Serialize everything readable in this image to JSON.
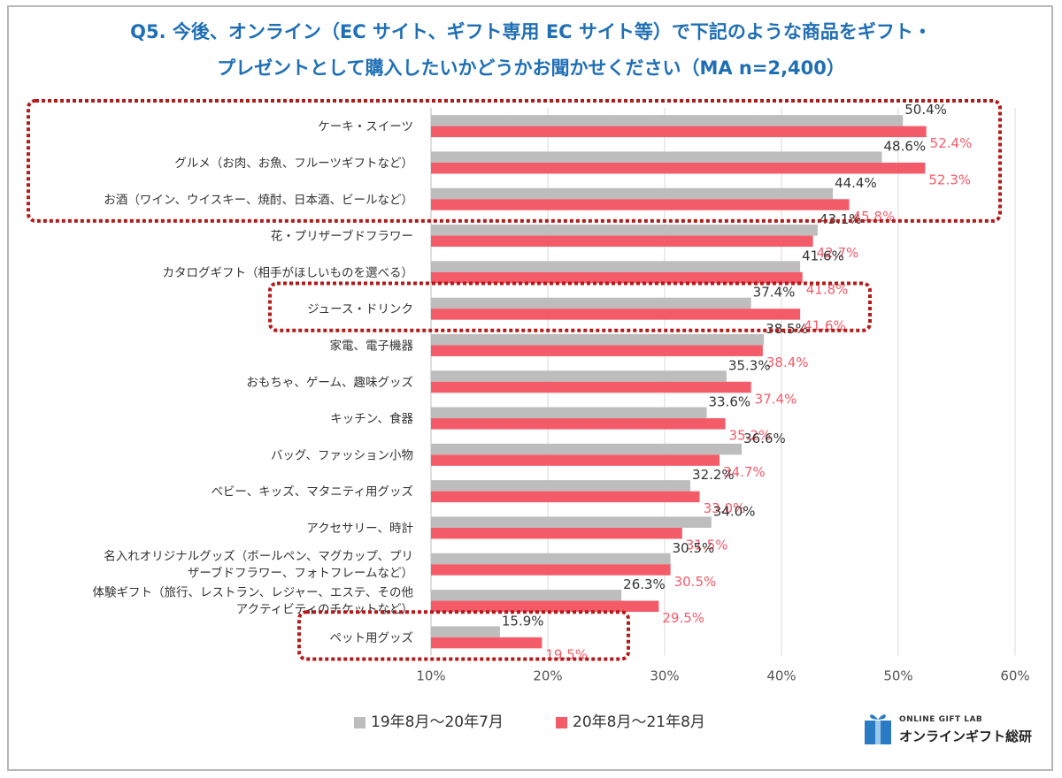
{
  "title_line1": "Q5. 今後、オンライン（EC サイト、ギフト専用 EC サイト等）で下記のような商品をギフト・",
  "title_line2": "プレゼントとして購入したいかどうかお聞かせください（MA n=2,400）",
  "legend": {
    "series1": "19年8月～20年7月",
    "series2": "20年8月～21年8月"
  },
  "logo": {
    "small_text": "ONLINE GIFT LAB",
    "big_text": "オンラインギフト総研"
  },
  "colors": {
    "series1": "#bdbdbd",
    "series2": "#f45b69",
    "highlight_box": "#b31b1b",
    "title": "#1f6fb5"
  },
  "chart_data": {
    "type": "bar",
    "orientation": "horizontal",
    "categories": [
      [
        "ケーキ・スイーツ"
      ],
      [
        "グルメ（お肉、お魚、フルーツギフトなど）"
      ],
      [
        "お酒（ワイン、ウイスキー、焼酎、日本酒、ビールなど）"
      ],
      [
        "花・プリザーブドフラワー"
      ],
      [
        "カタログギフト（相手がほしいものを選べる）"
      ],
      [
        "ジュース・ドリンク"
      ],
      [
        "家電、電子機器"
      ],
      [
        "おもちゃ、ゲーム、趣味グッズ"
      ],
      [
        "キッチン、食器"
      ],
      [
        "バッグ、ファッション小物"
      ],
      [
        "ベビー、キッズ、マタニティ用グッズ"
      ],
      [
        "アクセサリー、時計"
      ],
      [
        "名入れオリジナルグッズ（ボールペン、マグカップ、プリ",
        "ザーブドフラワー、フォトフレームなど）"
      ],
      [
        "体験ギフト（旅行、レストラン、レジャー、エステ、その他",
        "アクティビティのチケットなど）"
      ],
      [
        "ペット用グッズ"
      ]
    ],
    "series": [
      {
        "name": "19年8月～20年7月",
        "values": [
          50.4,
          48.6,
          44.4,
          43.1,
          41.6,
          37.4,
          38.5,
          35.3,
          33.6,
          36.6,
          32.2,
          34.0,
          30.5,
          26.3,
          15.9
        ],
        "labels": [
          "50.4%",
          "48.6%",
          "44.4%",
          "43.1%",
          "41.6%",
          "37.4%",
          "38.5%",
          "35.3%",
          "33.6%",
          "36.6%",
          "32.2%",
          "34.0%",
          "30.5%",
          "26.3%",
          "15.9%"
        ]
      },
      {
        "name": "20年8月～21年8月",
        "values": [
          52.4,
          52.3,
          45.8,
          42.7,
          41.8,
          41.6,
          38.4,
          37.4,
          35.2,
          34.7,
          33.0,
          31.5,
          30.5,
          29.5,
          19.5
        ],
        "labels": [
          "52.4%",
          "52.3%",
          "45.8%",
          "42.7%",
          "41.8%",
          "41.6%",
          "38.4%",
          "37.4%",
          "35.2%",
          "34.7%",
          "33.0%",
          "31.5%",
          "30.5%",
          "29.5%",
          "19.5%"
        ]
      }
    ],
    "x_ticks": [
      "10%",
      "20%",
      "30%",
      "40%",
      "50%",
      "60%"
    ],
    "xlim": [
      10,
      60
    ],
    "highlighted_groups": [
      [
        0,
        2
      ],
      [
        5,
        5
      ],
      [
        14,
        14
      ]
    ],
    "legend_position": "bottom",
    "grid": true
  }
}
